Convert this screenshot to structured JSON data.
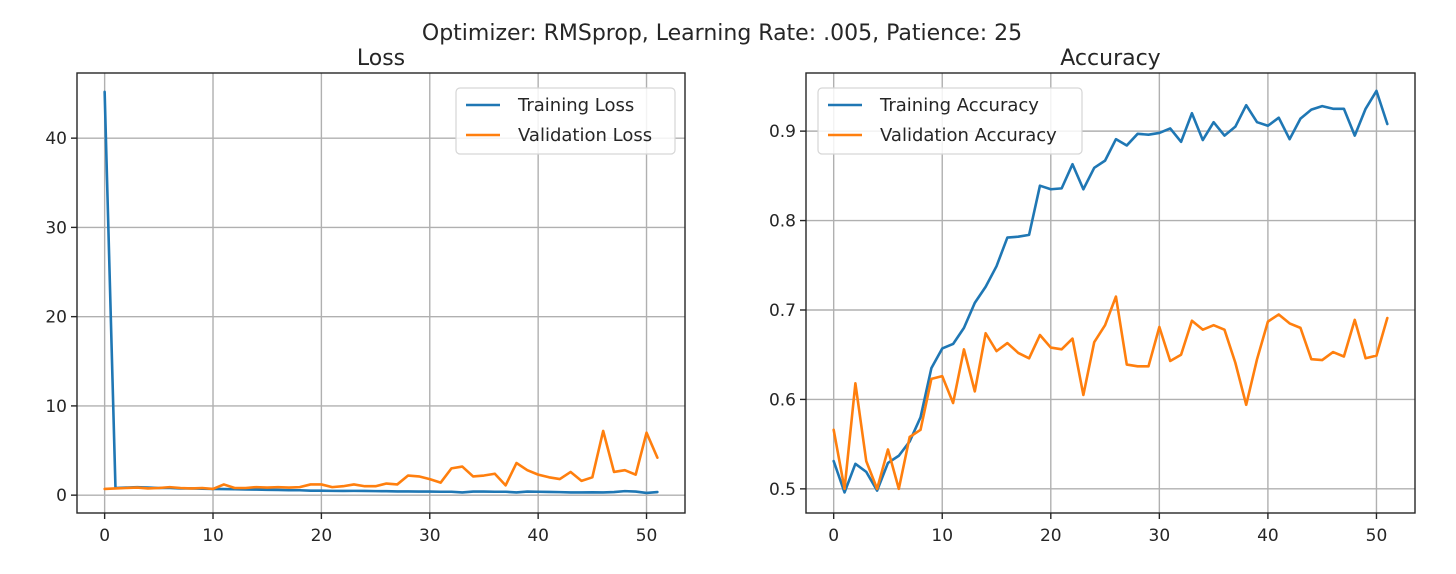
{
  "figure": {
    "suptitle": "Optimizer: RMSprop, Learning Rate: .005, Patience: 25"
  },
  "colors": {
    "training": "#1f77b4",
    "validation": "#ff7f0e"
  },
  "chart_data": [
    {
      "type": "line",
      "title": "Loss",
      "xlabel": "",
      "ylabel": "",
      "xlim": [
        -2.55,
        53.55
      ],
      "ylim": [
        -2.0,
        47.3
      ],
      "xticks": [
        0,
        10,
        20,
        30,
        40,
        50
      ],
      "yticks": [
        0,
        10,
        20,
        30,
        40
      ],
      "grid": true,
      "legend": "top-right",
      "x": [
        0,
        1,
        2,
        3,
        4,
        5,
        6,
        7,
        8,
        9,
        10,
        11,
        12,
        13,
        14,
        15,
        16,
        17,
        18,
        19,
        20,
        21,
        22,
        23,
        24,
        25,
        26,
        27,
        28,
        29,
        30,
        31,
        32,
        33,
        34,
        35,
        36,
        37,
        38,
        39,
        40,
        41,
        42,
        43,
        44,
        45,
        46,
        47,
        48,
        49,
        50,
        51
      ],
      "series": [
        {
          "name": "Training Loss",
          "color": "#1f77b4",
          "values": [
            45.2,
            0.8,
            0.85,
            0.9,
            0.85,
            0.8,
            0.8,
            0.75,
            0.75,
            0.72,
            0.7,
            0.68,
            0.66,
            0.64,
            0.62,
            0.6,
            0.58,
            0.56,
            0.55,
            0.5,
            0.5,
            0.48,
            0.47,
            0.48,
            0.47,
            0.45,
            0.44,
            0.42,
            0.42,
            0.4,
            0.4,
            0.38,
            0.38,
            0.3,
            0.4,
            0.4,
            0.38,
            0.38,
            0.3,
            0.4,
            0.38,
            0.36,
            0.34,
            0.3,
            0.3,
            0.32,
            0.3,
            0.35,
            0.45,
            0.4,
            0.25,
            0.35
          ]
        },
        {
          "name": "Validation Loss",
          "color": "#ff7f0e",
          "values": [
            0.7,
            0.75,
            0.8,
            0.85,
            0.75,
            0.8,
            0.9,
            0.8,
            0.75,
            0.8,
            0.7,
            1.2,
            0.8,
            0.8,
            0.9,
            0.85,
            0.9,
            0.85,
            0.9,
            1.2,
            1.2,
            0.9,
            1.0,
            1.2,
            1.0,
            1.0,
            1.3,
            1.2,
            2.2,
            2.1,
            1.8,
            1.4,
            3.0,
            3.2,
            2.1,
            2.2,
            2.4,
            1.1,
            3.6,
            2.8,
            2.3,
            2.0,
            1.8,
            2.6,
            1.6,
            2.0,
            7.2,
            2.6,
            2.8,
            2.3,
            7.0,
            4.2
          ]
        }
      ]
    },
    {
      "type": "line",
      "title": "Accuracy",
      "xlabel": "",
      "ylabel": "",
      "xlim": [
        -2.55,
        53.55
      ],
      "ylim": [
        0.473,
        0.965
      ],
      "xticks": [
        0,
        10,
        20,
        30,
        40,
        50
      ],
      "yticks": [
        0.5,
        0.6,
        0.7,
        0.8,
        0.9
      ],
      "ytick_labels": [
        "0.5",
        "0.6",
        "0.7",
        "0.8",
        "0.9"
      ],
      "grid": true,
      "legend": "top-left",
      "x": [
        0,
        1,
        2,
        3,
        4,
        5,
        6,
        7,
        8,
        9,
        10,
        11,
        12,
        13,
        14,
        15,
        16,
        17,
        18,
        19,
        20,
        21,
        22,
        23,
        24,
        25,
        26,
        27,
        28,
        29,
        30,
        31,
        32,
        33,
        34,
        35,
        36,
        37,
        38,
        39,
        40,
        41,
        42,
        43,
        44,
        45,
        46,
        47,
        48,
        49,
        50,
        51
      ],
      "series": [
        {
          "name": "Training Accuracy",
          "color": "#1f77b4",
          "values": [
            0.531,
            0.496,
            0.528,
            0.519,
            0.498,
            0.529,
            0.537,
            0.553,
            0.58,
            0.635,
            0.657,
            0.662,
            0.68,
            0.708,
            0.726,
            0.749,
            0.781,
            0.782,
            0.784,
            0.839,
            0.835,
            0.836,
            0.863,
            0.835,
            0.859,
            0.867,
            0.891,
            0.884,
            0.897,
            0.896,
            0.898,
            0.903,
            0.888,
            0.92,
            0.89,
            0.91,
            0.895,
            0.905,
            0.929,
            0.91,
            0.906,
            0.915,
            0.891,
            0.914,
            0.924,
            0.928,
            0.925,
            0.925,
            0.895,
            0.925,
            0.945,
            0.908
          ]
        },
        {
          "name": "Validation Accuracy",
          "color": "#ff7f0e",
          "values": [
            0.566,
            0.5,
            0.618,
            0.531,
            0.5,
            0.544,
            0.5,
            0.558,
            0.566,
            0.623,
            0.626,
            0.596,
            0.656,
            0.609,
            0.674,
            0.654,
            0.663,
            0.652,
            0.646,
            0.672,
            0.658,
            0.656,
            0.668,
            0.605,
            0.664,
            0.683,
            0.715,
            0.639,
            0.637,
            0.637,
            0.681,
            0.643,
            0.65,
            0.688,
            0.678,
            0.683,
            0.678,
            0.641,
            0.594,
            0.645,
            0.687,
            0.695,
            0.685,
            0.68,
            0.645,
            0.644,
            0.653,
            0.648,
            0.689,
            0.646,
            0.649,
            0.691
          ]
        }
      ]
    }
  ]
}
